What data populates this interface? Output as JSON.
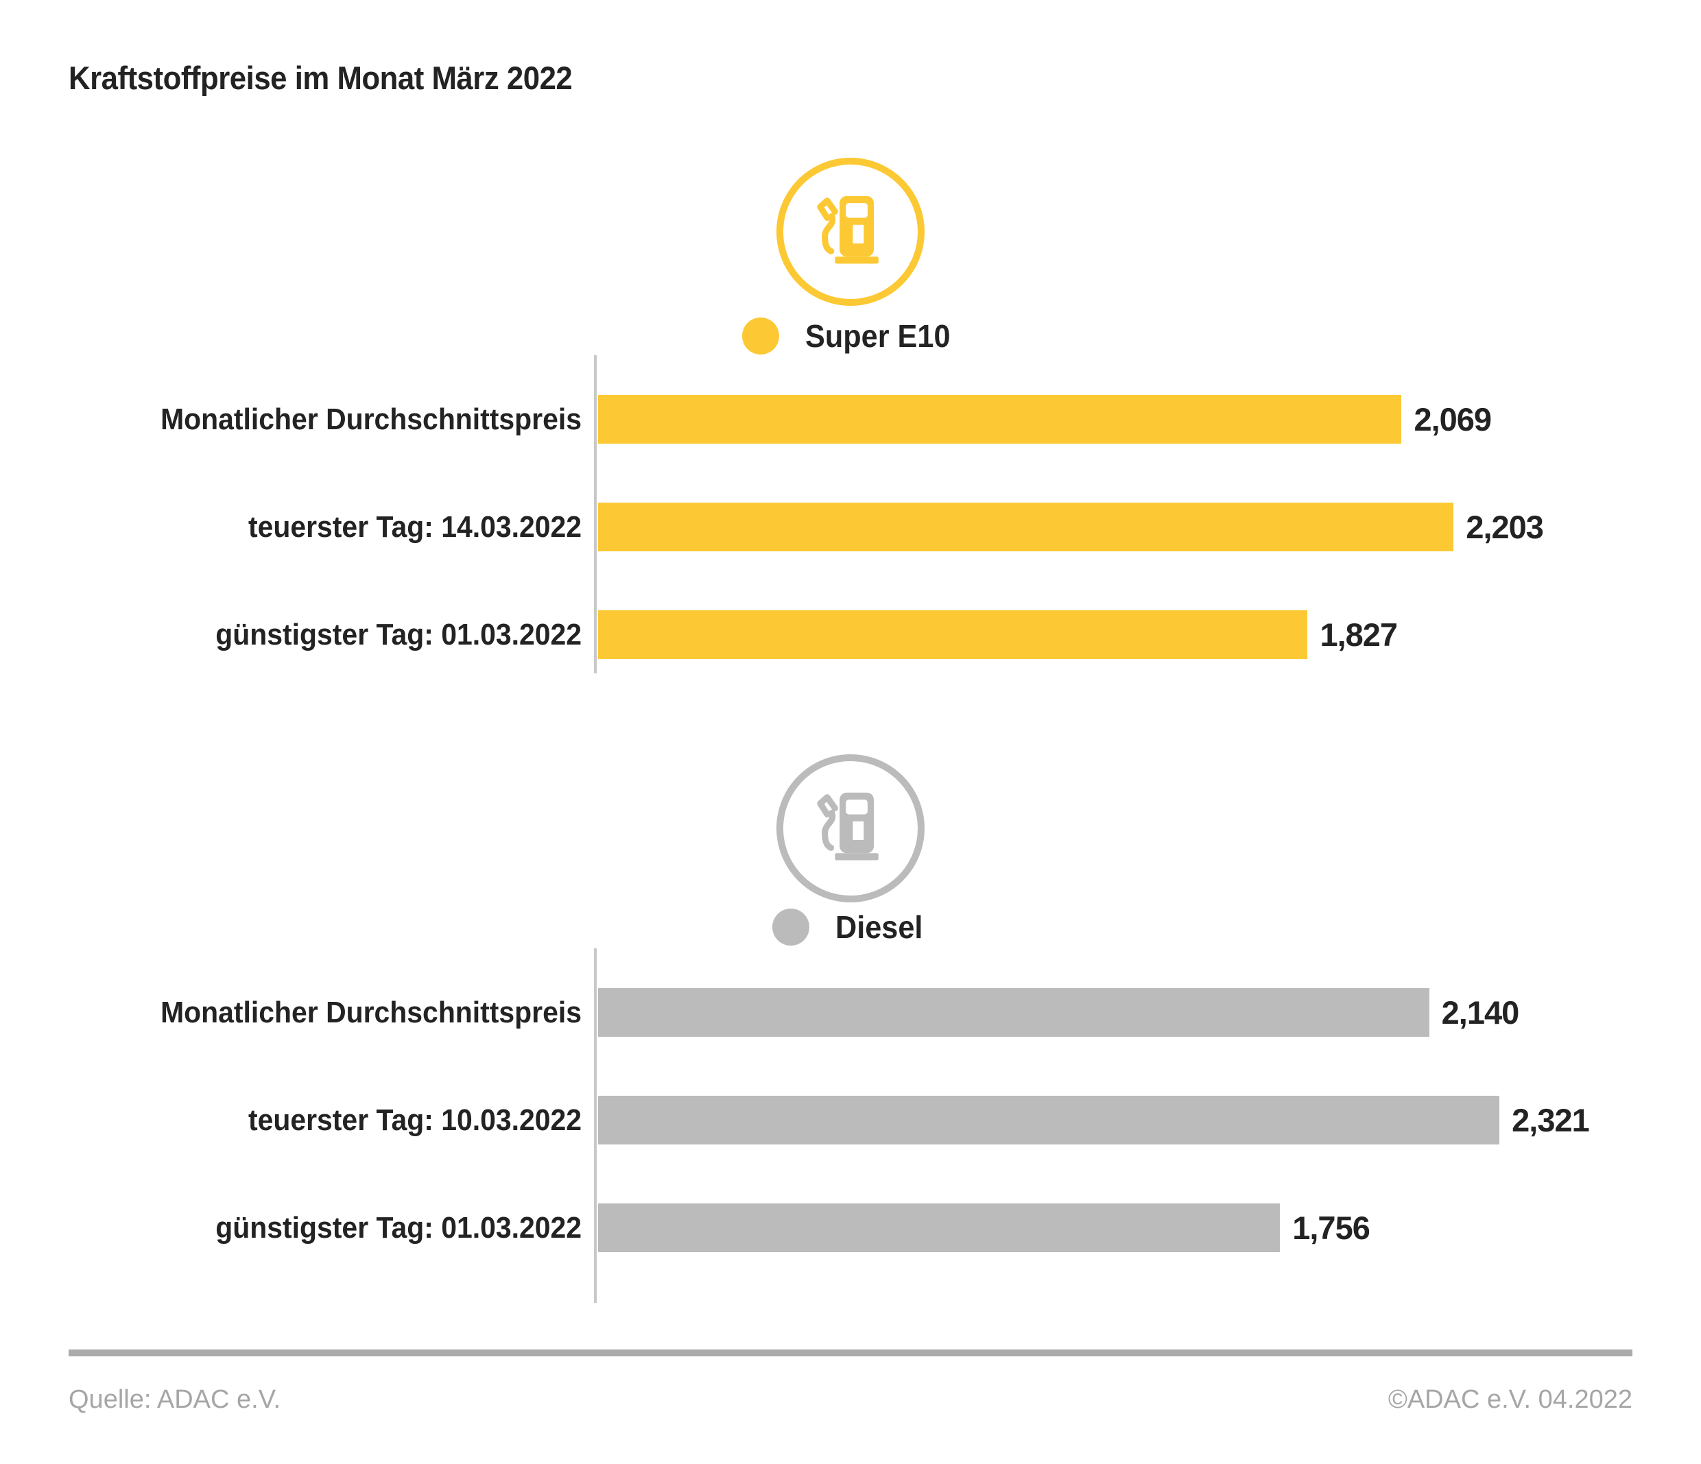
{
  "title": "Kraftstoffpreise im Monat März 2022",
  "colors": {
    "text_dark": "#232323",
    "text_muted": "#A6A6A6",
    "axis_line": "#C8C8C8",
    "divider": "#ABABAB"
  },
  "chart_data": [
    {
      "type": "bar",
      "orientation": "horizontal",
      "legend": "Super E10",
      "icon": "fuel-pump-icon",
      "color": "#FCC934",
      "categories": [
        "Monatlicher Durchschnittspreis",
        "teuerster Tag: 14.03.2022",
        "günstigster Tag: 01.03.2022"
      ],
      "values": [
        2.069,
        2.203,
        1.827
      ],
      "value_labels": [
        "2,069",
        "2,203",
        "1,827"
      ],
      "xlim": [
        0,
        2.84
      ],
      "grid": false,
      "value_label_position": "end-of-bar"
    },
    {
      "type": "bar",
      "orientation": "horizontal",
      "legend": "Diesel",
      "icon": "fuel-pump-icon",
      "color": "#BBBBBB",
      "categories": [
        "Monatlicher Durchschnittspreis",
        "teuerster Tag: 10.03.2022",
        "günstigster Tag: 01.03.2022"
      ],
      "values": [
        2.14,
        2.321,
        1.756
      ],
      "value_labels": [
        "2,140",
        "2,321",
        "1,756"
      ],
      "xlim": [
        0,
        2.84
      ],
      "grid": false,
      "value_label_position": "end-of-bar"
    }
  ],
  "footer": {
    "source": "Quelle: ADAC e.V.",
    "copyright": "©ADAC e.V. 04.2022"
  }
}
